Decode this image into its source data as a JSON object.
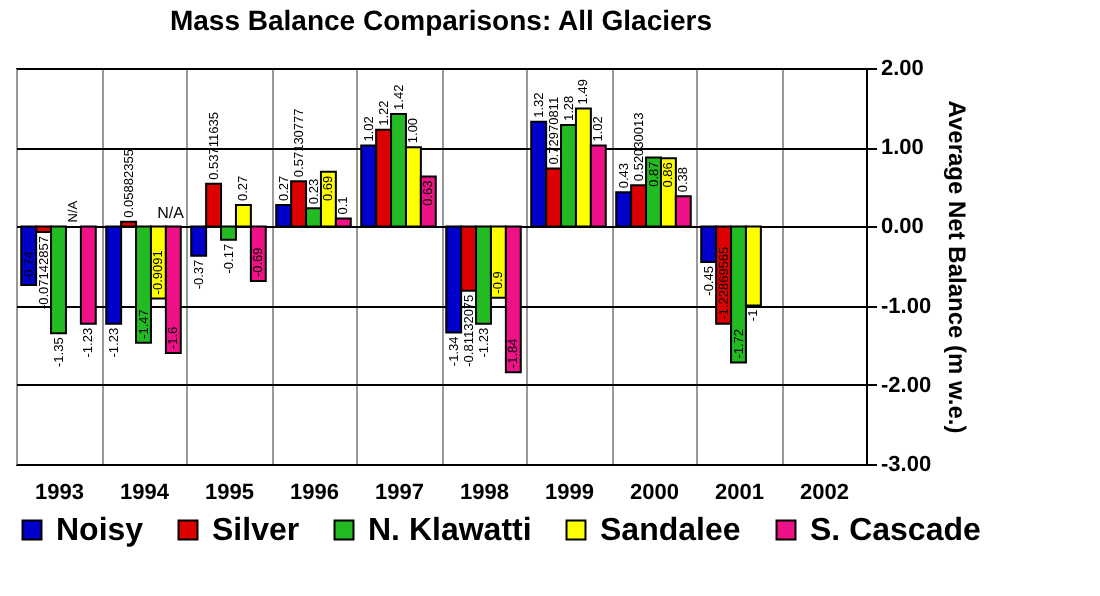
{
  "chart_data": {
    "type": "bar",
    "title": "Mass Balance Comparisons: All Glaciers",
    "ylabel": "Average Net Balance (m w.e.)",
    "categories": [
      "1993",
      "1994",
      "1995",
      "1996",
      "1997",
      "1998",
      "1999",
      "2000",
      "2001",
      "2002"
    ],
    "series": [
      {
        "name": "Noisy",
        "color": "#0000cc",
        "values": [
          -0.74,
          -1.23,
          -0.37,
          0.27,
          1.02,
          -1.34,
          1.32,
          0.43,
          -0.45,
          null
        ],
        "value_labels": [
          "-0.74",
          "-1.23",
          "-0.37",
          "0.27",
          "1.02",
          "-1.34",
          "1.32",
          "0.43",
          "-0.45",
          null
        ]
      },
      {
        "name": "Silver",
        "color": "#dd0000",
        "values": [
          -0.07142857,
          0.05882355,
          0.53711635,
          0.57130777,
          1.22,
          -0.81132075,
          0.72970811,
          0.52030013,
          -1.22869565,
          null
        ],
        "value_labels": [
          "-0.07142857",
          "0.05882355",
          "0.53711635",
          "0.57130777",
          "1.22",
          "-0.81132075",
          "0.72970811",
          "0.52030013",
          "-1.22869565",
          null
        ]
      },
      {
        "name": "N. Klawatti",
        "color": "#22bb22",
        "values": [
          -1.35,
          -1.47,
          -0.17,
          0.23,
          1.42,
          -1.23,
          1.28,
          0.87,
          -1.72,
          null
        ],
        "value_labels": [
          "-1.35",
          "-1.47",
          "-0.17",
          "0.23",
          "1.42",
          "-1.23",
          "1.28",
          "0.87",
          "-1.72",
          null
        ]
      },
      {
        "name": "Sandalee",
        "color": "#ffff00",
        "values": [
          null,
          -0.9091,
          0.27,
          0.69,
          1.0,
          -0.9,
          1.49,
          0.86,
          -1,
          null
        ],
        "value_labels": [
          "N/A",
          "-0.9091",
          "0.27",
          "0.69",
          "1.00",
          "-0.9",
          "1.49",
          "0.86",
          "-1",
          null
        ]
      },
      {
        "name": "S. Cascade",
        "color": "#ee1188",
        "values": [
          -1.23,
          -1.6,
          -0.69,
          0.1,
          0.63,
          -1.84,
          1.02,
          0.38,
          null,
          null
        ],
        "value_labels": [
          "-1.23",
          "-1.6",
          "-0.69",
          "0.1",
          "0.63",
          "-1.84",
          "1.02",
          "0.38",
          null,
          null
        ]
      }
    ],
    "annotations": [
      "N/A"
    ],
    "ylim": [
      -3,
      2
    ],
    "yticks": [
      {
        "value": -3,
        "label": "-3.00"
      },
      {
        "value": -2,
        "label": "-2.00"
      },
      {
        "value": -1,
        "label": "-1.00"
      },
      {
        "value": 0,
        "label": "0.00"
      },
      {
        "value": 1,
        "label": "1.00"
      },
      {
        "value": 2,
        "label": "2.00"
      }
    ],
    "grid": true,
    "legend": "bottom"
  }
}
